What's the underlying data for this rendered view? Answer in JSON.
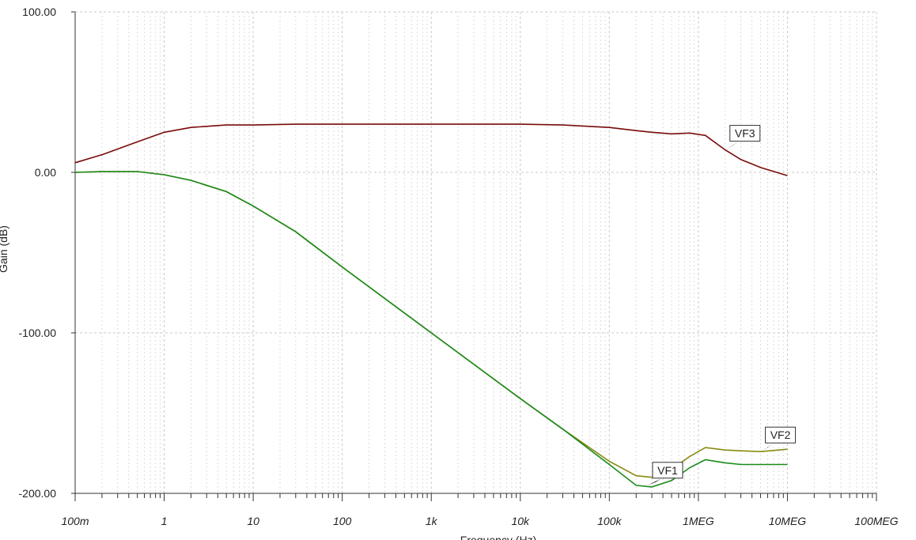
{
  "chart_data": {
    "type": "line",
    "x_label": "Frequency (Hz)",
    "y_label": "Gain (dB)",
    "x_log": true,
    "grid": true,
    "xlim": [
      0.1,
      100000000
    ],
    "ylim": [
      -200,
      100
    ],
    "xticks": [
      {
        "value": 0.1,
        "label": "100m"
      },
      1,
      10,
      100,
      {
        "value": 1000,
        "label": "1k"
      },
      {
        "value": 10000,
        "label": "10k"
      },
      {
        "value": 100000,
        "label": "100k"
      },
      {
        "value": 1000000,
        "label": "1MEG"
      },
      {
        "value": 10000000,
        "label": "10MEG"
      },
      {
        "value": 100000000,
        "label": "100MEG"
      }
    ],
    "yticks": [
      {
        "value": 100,
        "label": "100.00"
      },
      {
        "value": 0,
        "label": "0.00"
      },
      {
        "value": -100,
        "label": "-100.00"
      },
      {
        "value": -200,
        "label": "-200.00"
      }
    ],
    "x": [
      0.1,
      0.2,
      0.5,
      1,
      2,
      5,
      10,
      30,
      100,
      1000,
      10000,
      30000,
      100000,
      200000,
      300000,
      500000,
      800000,
      1200000,
      2000000,
      3000000,
      5000000,
      10000000
    ],
    "series": [
      {
        "name": "VF3",
        "color": "#7a0a0a",
        "values": [
          6,
          11,
          19,
          25,
          28,
          29.5,
          29.5,
          30,
          30,
          30,
          30,
          29.5,
          28,
          26,
          25,
          24,
          24.5,
          23,
          14,
          8,
          3,
          -2
        ]
      },
      {
        "name": "VF2",
        "color": "#8a8a10",
        "values": [
          0,
          0.5,
          0.5,
          -1.5,
          -5,
          -12,
          -21,
          -37,
          -59,
          -100,
          -141,
          -160,
          -180,
          -189,
          -190,
          -185,
          -177,
          -171.5,
          -173,
          -173.5,
          -174,
          -172.5
        ]
      },
      {
        "name": "VF1",
        "color": "#1a8a1a",
        "values": [
          0,
          0.5,
          0.5,
          -1.5,
          -5,
          -12,
          -21,
          -37,
          -59,
          -100,
          -141,
          -160,
          -182,
          -195,
          -196,
          -192,
          -184,
          -179,
          -181,
          -182,
          -182,
          -182
        ]
      }
    ]
  }
}
